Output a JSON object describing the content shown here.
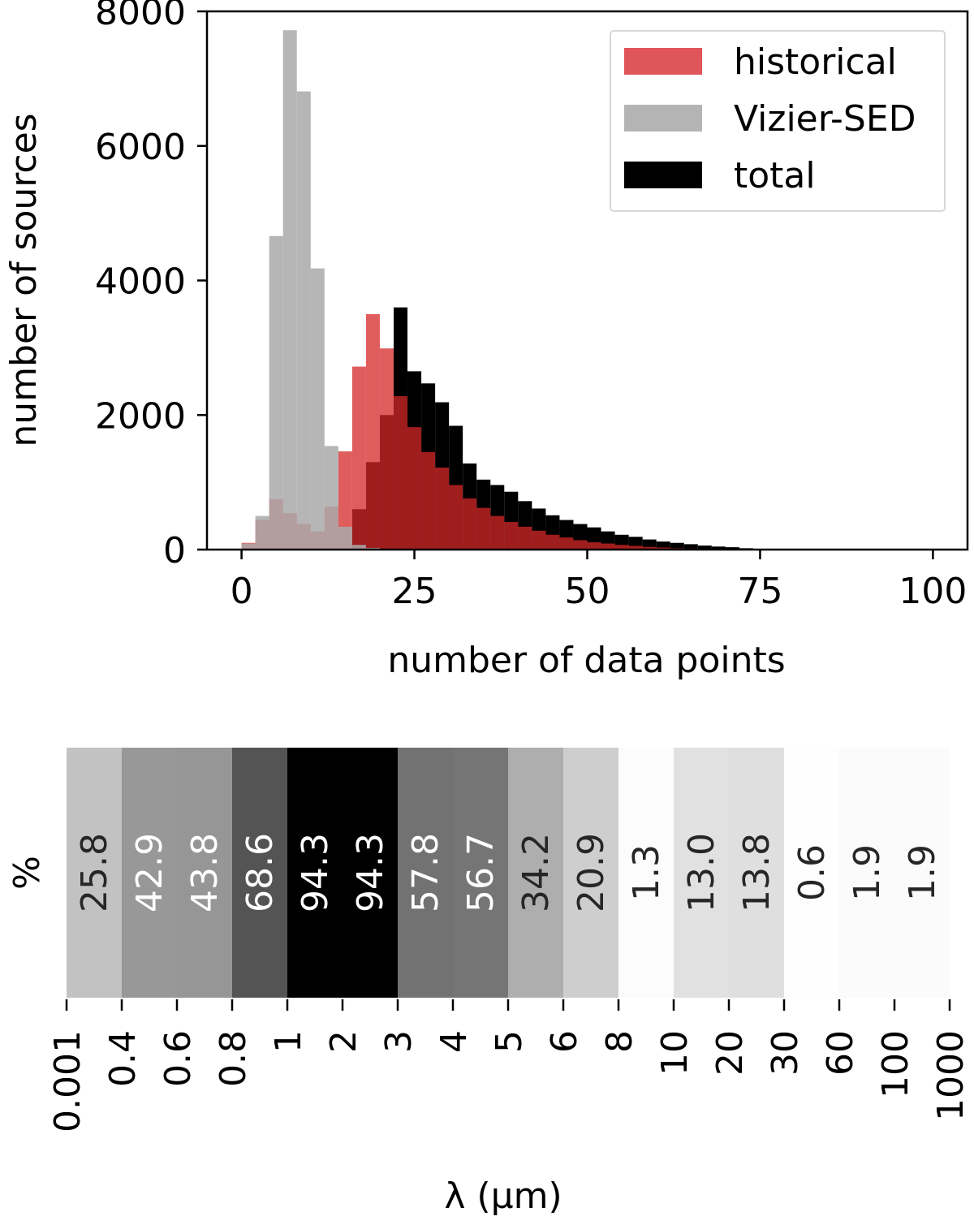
{
  "chart_data": [
    {
      "type": "bar",
      "subtype": "overlapping-histogram",
      "xlabel": "number of  data points",
      "ylabel": "number of sources",
      "xlim": [
        -5,
        105
      ],
      "ylim": [
        0,
        8000
      ],
      "xticks": [
        0,
        25,
        50,
        75,
        100
      ],
      "yticks": [
        0,
        2000,
        4000,
        6000,
        8000
      ],
      "bin_width": 2,
      "legend_position": "top-right",
      "series": [
        {
          "name": "historical",
          "color": "#d62728",
          "bins_start": [
            0,
            2,
            4,
            6,
            8,
            10,
            12,
            14,
            16,
            18,
            20,
            22,
            24,
            26,
            28,
            30,
            32,
            34,
            36,
            38,
            40,
            42,
            44,
            46,
            48,
            50,
            52,
            54,
            56,
            58,
            60,
            62,
            64,
            66
          ],
          "values": [
            100,
            440,
            750,
            540,
            380,
            270,
            640,
            1460,
            2720,
            3500,
            2990,
            2280,
            1820,
            1450,
            1220,
            960,
            760,
            620,
            500,
            410,
            340,
            280,
            220,
            180,
            140,
            110,
            90,
            70,
            55,
            40,
            30,
            20,
            15,
            8
          ]
        },
        {
          "name": "Vizier-SED",
          "color": "#a9a9a9",
          "bins_start": [
            0,
            2,
            4,
            6,
            8,
            10,
            12,
            14,
            16,
            18,
            20,
            22,
            24,
            26
          ],
          "values": [
            90,
            500,
            4660,
            7720,
            6810,
            4180,
            1540,
            340,
            70,
            25,
            10,
            5,
            2,
            1
          ]
        },
        {
          "name": "total",
          "color": "#000000",
          "bins_start": [
            16,
            18,
            20,
            22,
            24,
            26,
            28,
            30,
            32,
            34,
            36,
            38,
            40,
            42,
            44,
            46,
            48,
            50,
            52,
            54,
            56,
            58,
            60,
            62,
            64,
            66,
            68,
            70,
            72,
            74,
            76
          ],
          "values": [
            600,
            1300,
            2000,
            3600,
            2650,
            2470,
            2190,
            1840,
            1280,
            1040,
            960,
            860,
            720,
            610,
            510,
            440,
            380,
            330,
            270,
            220,
            190,
            150,
            120,
            100,
            80,
            60,
            45,
            35,
            20,
            12,
            6
          ]
        }
      ]
    },
    {
      "type": "heatmap",
      "xlabel": "λ (μm)",
      "ylabel": "%",
      "colormap": "greys",
      "vmin": 0,
      "vmax": 94.3,
      "x_tick_labels": [
        "0.001",
        "0.4",
        "0.6",
        "0.8",
        "1",
        "2",
        "3",
        "4",
        "5",
        "6",
        "8",
        "10",
        "20",
        "30",
        "60",
        "100",
        "1000"
      ],
      "values": [
        25.8,
        42.9,
        43.8,
        68.6,
        94.3,
        94.3,
        57.8,
        56.7,
        34.2,
        20.9,
        1.3,
        13.0,
        13.8,
        0.6,
        1.9,
        1.9
      ],
      "value_labels": [
        "25.8",
        "42.9",
        "43.8",
        "68.6",
        "94.3",
        "94.3",
        "57.8",
        "56.7",
        "34.2",
        "20.9",
        "1.3",
        "13.0",
        "13.8",
        "0.6",
        "1.9",
        "1.9"
      ]
    }
  ]
}
